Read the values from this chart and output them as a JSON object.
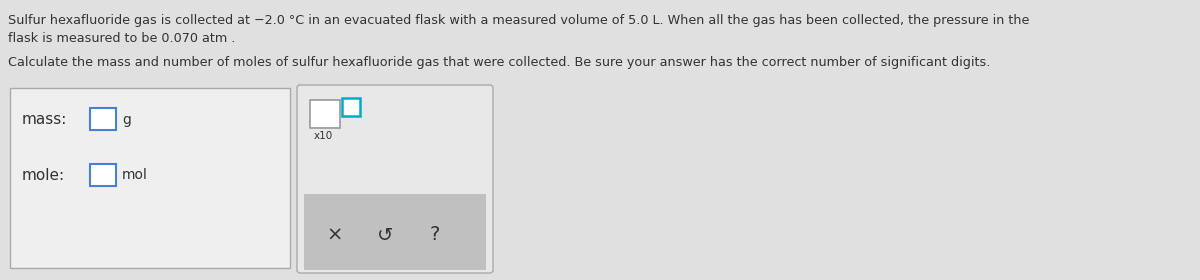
{
  "line1": "Sulfur hexafluoride gas is collected at −2.0 °C in an evacuated flask with a measured volume of 5.0 L. When all the gas has been collected, the pressure in the",
  "line2": "flask is measured to be 0.070 atm .",
  "line3": "Calculate the mass and number of moles of sulfur hexafluoride gas that were collected. Be sure your answer has the correct number of significant digits.",
  "label_mass": "mass:",
  "label_mole": "mole:",
  "unit_g": "g",
  "unit_mol": "mol",
  "bg_color": "#e0e0e0",
  "panel_bg": "#efefef",
  "right_panel_bg": "#e8e8e8",
  "text_color": "#333333",
  "input_box_color_mass": "#4a7fd4",
  "input_box_color_mole": "#4a7fd4",
  "sup_box_color": "#00aacc",
  "button_bg": "#c0c0c0",
  "btn1": "×",
  "btn2": "↺",
  "btn3": "?",
  "x10_label": "x10"
}
